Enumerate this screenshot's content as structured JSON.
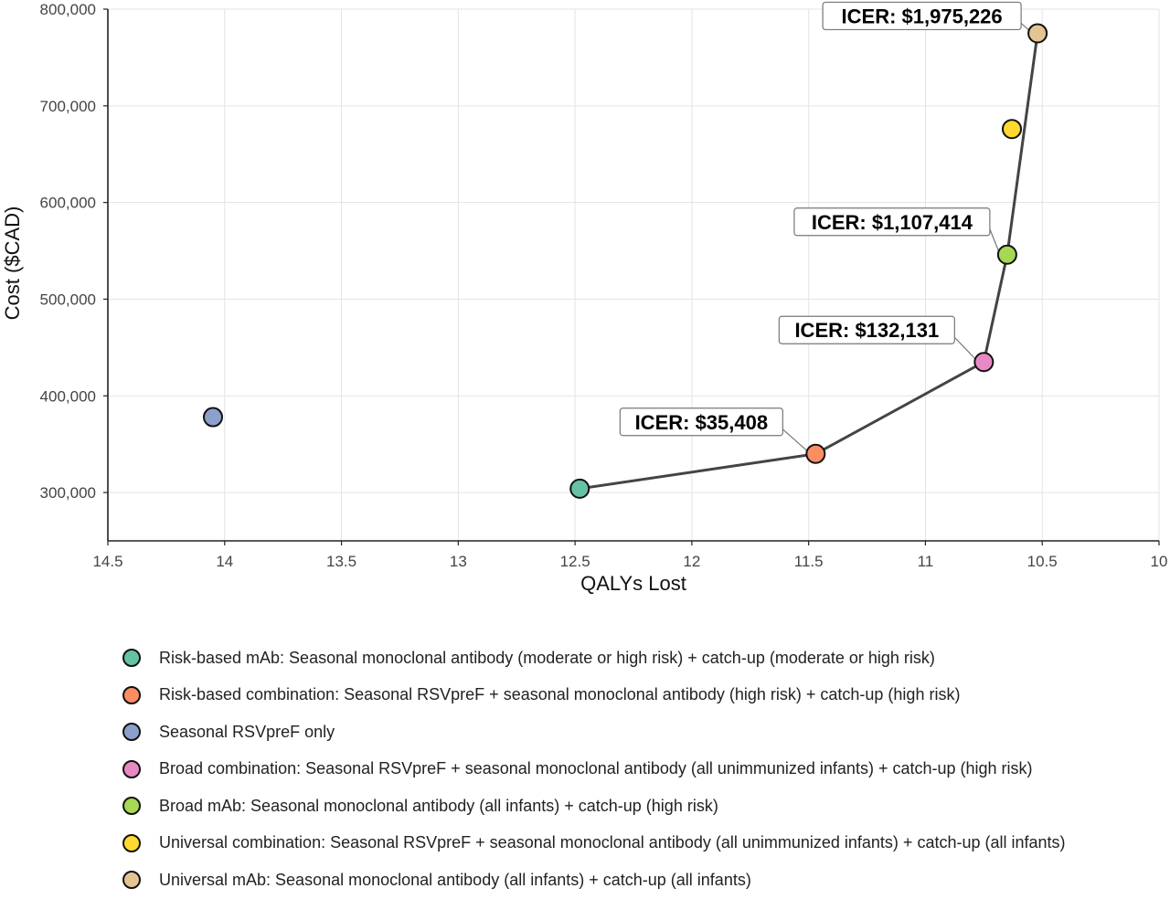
{
  "chart_data": {
    "type": "scatter",
    "xlabel": "QALYs Lost",
    "ylabel": "Cost ($CAD)",
    "xlim": [
      14.5,
      10
    ],
    "x_reversed": true,
    "ylim": [
      250000,
      800000
    ],
    "x_ticks": [
      14.5,
      14,
      13.5,
      13,
      12.5,
      12,
      11.5,
      11,
      10.5,
      10
    ],
    "x_tick_labels": [
      "14.5",
      "14",
      "13.5",
      "13",
      "12.5",
      "12",
      "11.5",
      "11",
      "10.5",
      "10"
    ],
    "y_ticks": [
      300000,
      400000,
      500000,
      600000,
      700000,
      800000
    ],
    "y_tick_labels": [
      "300,000",
      "400,000",
      "500,000",
      "600,000",
      "700,000",
      "800,000"
    ],
    "grid": true,
    "legend_placement": "bottom",
    "series": [
      {
        "name": "Risk-based mAb: Seasonal monoclonal antibody (moderate or high risk) + catch-up (moderate or high risk)",
        "x": 12.48,
        "y": 304000,
        "color": "#66c2a5"
      },
      {
        "name": "Risk-based combination: Seasonal RSVpreF + seasonal monoclonal antibody (high risk) + catch-up (high risk)",
        "x": 11.47,
        "y": 340000,
        "color": "#fc8d62"
      },
      {
        "name": "Seasonal RSVpreF only",
        "x": 14.05,
        "y": 378000,
        "color": "#8da0cb"
      },
      {
        "name": "Broad combination: Seasonal RSVpreF + seasonal monoclonal antibody (all unimmunized infants) + catch-up (high risk)",
        "x": 10.75,
        "y": 435000,
        "color": "#e78ac3"
      },
      {
        "name": "Broad mAb: Seasonal monoclonal antibody (all infants) + catch-up (high risk)",
        "x": 10.65,
        "y": 546000,
        "color": "#a6d854"
      },
      {
        "name": "Universal combination: Seasonal RSVpreF + seasonal monoclonal antibody (all unimmunized infants) + catch-up (all infants)",
        "x": 10.63,
        "y": 676000,
        "color": "#ffd92f"
      },
      {
        "name": "Universal mAb: Seasonal monoclonal antibody (all infants) + catch-up (all infants)",
        "x": 10.52,
        "y": 775000,
        "color": "#e5c494"
      }
    ],
    "frontier": [
      0,
      1,
      3,
      4,
      6
    ],
    "frontier_color": "#444444",
    "annotations": [
      {
        "text": "ICER: $35,408",
        "point": 1
      },
      {
        "text": "ICER: $132,131",
        "point": 3
      },
      {
        "text": "ICER: $1,107,414",
        "point": 4
      },
      {
        "text": "ICER: $1,975,226",
        "point": 6
      }
    ]
  }
}
